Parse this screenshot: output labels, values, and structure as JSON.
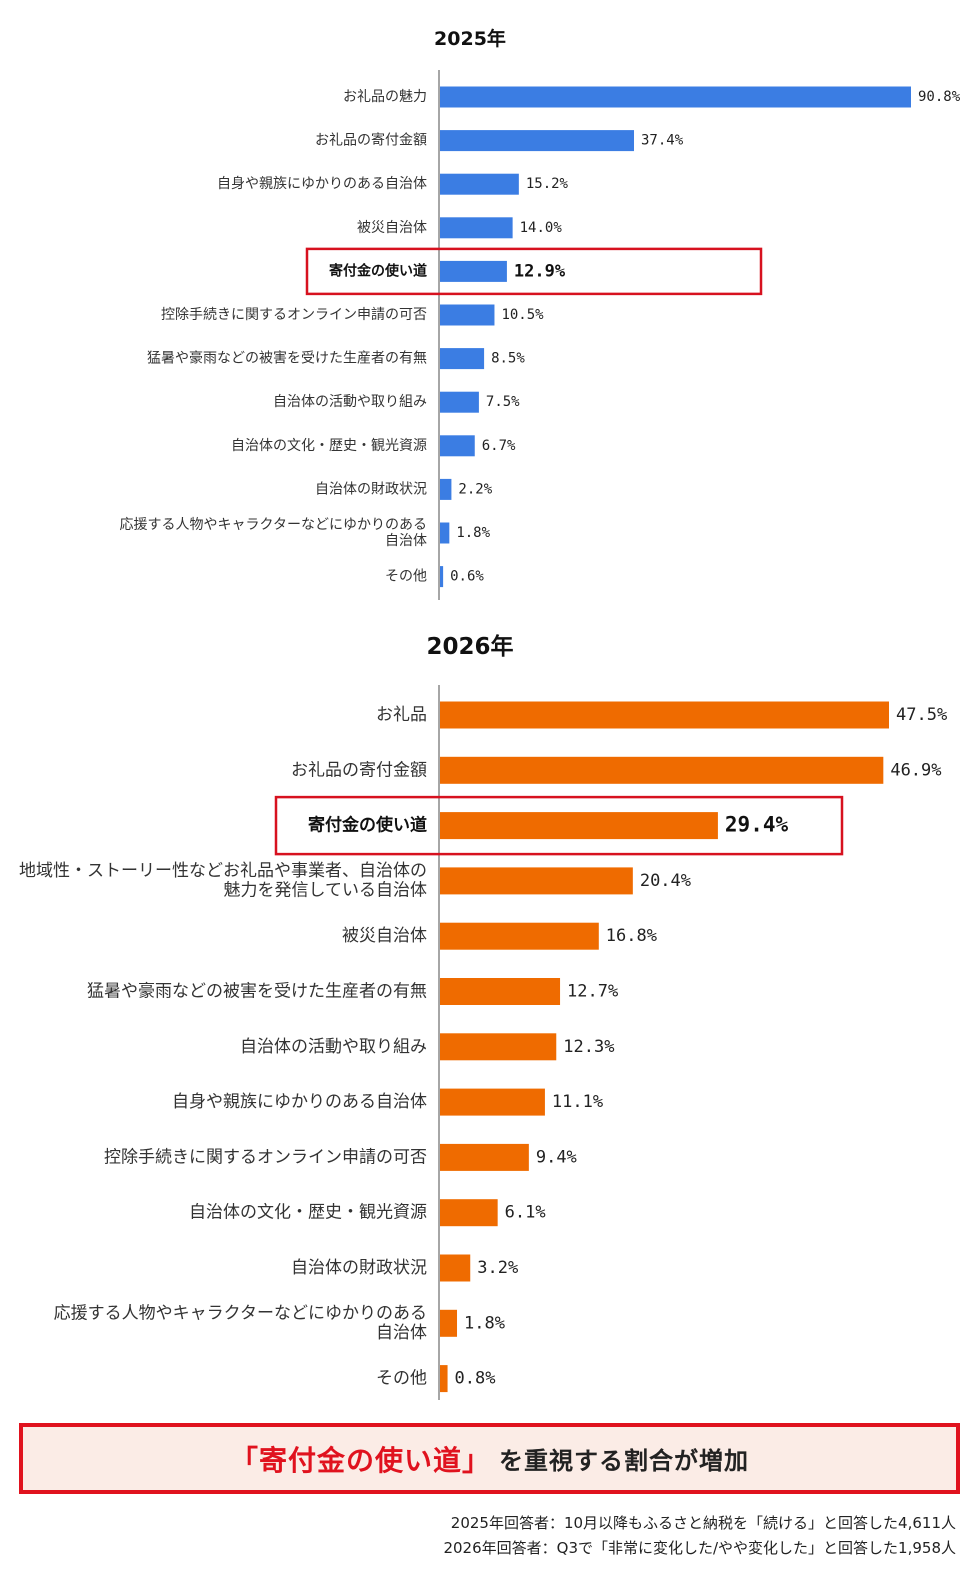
{
  "chart_data": [
    {
      "type": "bar",
      "orientation": "horizontal",
      "title": "2025年",
      "categories": [
        "お礼品の魅力",
        "お礼品の寄付金額",
        "自身や親族にゆかりのある自治体",
        "被災自治体",
        "寄付金の使い道",
        "控除手続きに関するオンライン申請の可否",
        "猛暑や豪雨などの被害を受けた生産者の有無",
        "自治体の活動や取り組み",
        "自治体の文化・歴史・観光資源",
        "自治体の財政状況",
        "応援する人物やキャラクターなどにゆかりのある\n自治体",
        "その他"
      ],
      "values": [
        90.8,
        37.4,
        15.2,
        14.0,
        12.9,
        10.5,
        8.5,
        7.5,
        6.7,
        2.2,
        1.8,
        0.6
      ],
      "value_labels": [
        "90.8%",
        "37.4%",
        "15.2%",
        "14.0%",
        "12.9%",
        "10.5%",
        "8.5%",
        "7.5%",
        "6.7%",
        "2.2%",
        "1.8%",
        "0.6%"
      ],
      "highlight_index": 4,
      "bar_color": "#3b7de3",
      "highlight_color": "#d7111f",
      "xlim": [
        0,
        90.8
      ]
    },
    {
      "type": "bar",
      "orientation": "horizontal",
      "title": "2026年",
      "categories": [
        "お礼品",
        "お礼品の寄付金額",
        "寄付金の使い道",
        "地域性・ストーリー性などお礼品や事業者、自治体の\n魅力を発信している自治体",
        "被災自治体",
        "猛暑や豪雨などの被害を受けた生産者の有無",
        "自治体の活動や取り組み",
        "自身や親族にゆかりのある自治体",
        "控除手続きに関するオンライン申請の可否",
        "自治体の文化・歴史・観光資源",
        "自治体の財政状況",
        "応援する人物やキャラクターなどにゆかりのある\n自治体",
        "その他"
      ],
      "values": [
        47.5,
        46.9,
        29.4,
        20.4,
        16.8,
        12.7,
        12.3,
        11.1,
        9.4,
        6.1,
        3.2,
        1.8,
        0.8
      ],
      "value_labels": [
        "47.5%",
        "46.9%",
        "29.4%",
        "20.4%",
        "16.8%",
        "12.7%",
        "12.3%",
        "11.1%",
        "9.4%",
        "6.1%",
        "3.2%",
        "1.8%",
        "0.8%"
      ],
      "highlight_index": 2,
      "bar_color": "#ef6b00",
      "highlight_color": "#d7111f",
      "xlim": [
        0,
        47.5
      ]
    }
  ],
  "banner": {
    "highlight": "「寄付金の使い道」",
    "rest": "を重視する割合が増加",
    "border_color": "#e0121e",
    "background": "#fbece6"
  },
  "footnotes": [
    "2025年回答者：10月以降もふるさと納税を「続ける」と回答した4,611人",
    "2026年回答者：Q3で「非常に変化した/やや変化した」と回答した1,958人"
  ]
}
